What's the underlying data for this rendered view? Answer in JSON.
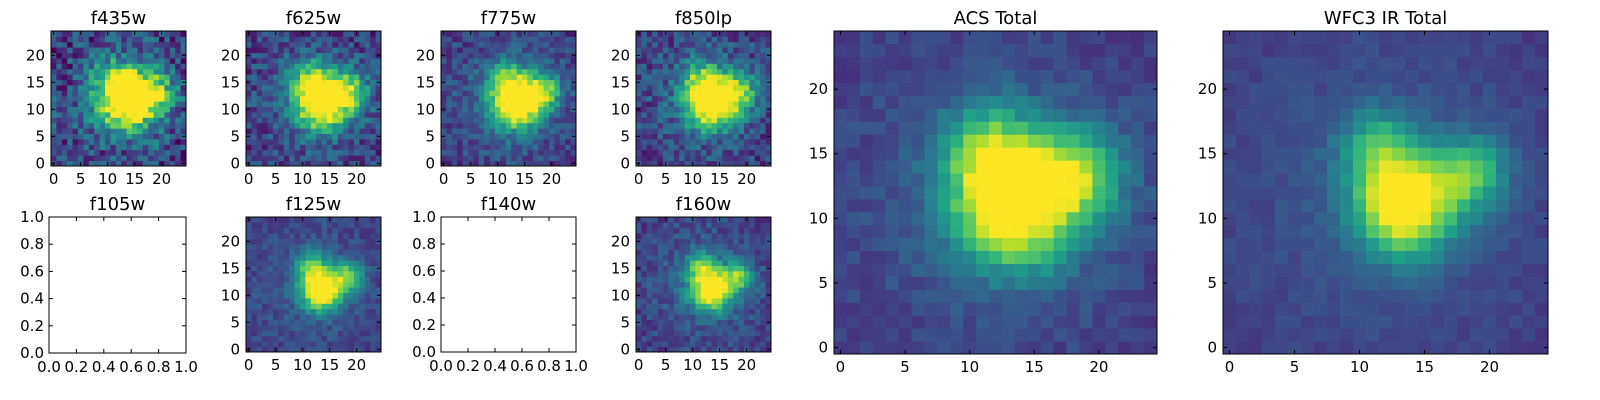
{
  "colormap": [
    "#440154",
    "#482878",
    "#3e4989",
    "#31688e",
    "#26828e",
    "#1f9e89",
    "#35b779",
    "#6ece58",
    "#b5de2b",
    "#fde725"
  ],
  "chart_data": [
    {
      "id": "f435w",
      "type": "heatmap",
      "title": "f435w",
      "grid_size": 25,
      "x_ticks": [
        0,
        5,
        10,
        15,
        20
      ],
      "y_ticks": [
        0,
        5,
        10,
        15,
        20
      ],
      "has_data": true,
      "noise": 0.42,
      "sharp": 0.7
    },
    {
      "id": "f625w",
      "type": "heatmap",
      "title": "f625w",
      "grid_size": 25,
      "x_ticks": [
        0,
        5,
        10,
        15,
        20
      ],
      "y_ticks": [
        0,
        5,
        10,
        15,
        20
      ],
      "has_data": true,
      "noise": 0.32,
      "sharp": 0.8
    },
    {
      "id": "f775w",
      "type": "heatmap",
      "title": "f775w",
      "grid_size": 25,
      "x_ticks": [
        0,
        5,
        10,
        15,
        20
      ],
      "y_ticks": [
        0,
        5,
        10,
        15,
        20
      ],
      "has_data": true,
      "noise": 0.24,
      "sharp": 0.9
    },
    {
      "id": "f850lp",
      "type": "heatmap",
      "title": "f850lp",
      "grid_size": 25,
      "x_ticks": [
        0,
        5,
        10,
        15,
        20
      ],
      "y_ticks": [
        0,
        5,
        10,
        15,
        20
      ],
      "has_data": true,
      "noise": 0.3,
      "sharp": 0.85
    },
    {
      "id": "f105w",
      "type": "heatmap",
      "title": "f105w",
      "x_ticks": [
        "0.0",
        "0.2",
        "0.4",
        "0.6",
        "0.8",
        "1.0"
      ],
      "y_ticks": [
        "0.0",
        "0.2",
        "0.4",
        "0.6",
        "0.8",
        "1.0"
      ],
      "has_data": false
    },
    {
      "id": "f125w",
      "type": "heatmap",
      "title": "f125w",
      "grid_size": 25,
      "x_ticks": [
        0,
        5,
        10,
        15,
        20
      ],
      "y_ticks": [
        0,
        5,
        10,
        15,
        20
      ],
      "has_data": true,
      "noise": 0.16,
      "sharp": 1.4
    },
    {
      "id": "f140w",
      "type": "heatmap",
      "title": "f140w",
      "x_ticks": [
        "0.0",
        "0.2",
        "0.4",
        "0.6",
        "0.8",
        "1.0"
      ],
      "y_ticks": [
        "0.0",
        "0.2",
        "0.4",
        "0.6",
        "0.8",
        "1.0"
      ],
      "has_data": false
    },
    {
      "id": "f160w",
      "type": "heatmap",
      "title": "f160w",
      "grid_size": 25,
      "x_ticks": [
        0,
        5,
        10,
        15,
        20
      ],
      "y_ticks": [
        0,
        5,
        10,
        15,
        20
      ],
      "has_data": true,
      "noise": 0.2,
      "sharp": 1.4
    },
    {
      "id": "acs-total",
      "type": "heatmap",
      "title": "ACS Total",
      "grid_size": 25,
      "x_ticks": [
        0,
        5,
        10,
        15,
        20
      ],
      "y_ticks": [
        0,
        5,
        10,
        15,
        20
      ],
      "has_data": true,
      "noise": 0.12,
      "sharp": 0.9
    },
    {
      "id": "wfc3-ir-total",
      "type": "heatmap",
      "title": "WFC3 IR Total",
      "grid_size": 25,
      "x_ticks": [
        0,
        5,
        10,
        15,
        20
      ],
      "y_ticks": [
        0,
        5,
        10,
        15,
        20
      ],
      "has_data": true,
      "noise": 0.08,
      "sharp": 1.5
    }
  ]
}
